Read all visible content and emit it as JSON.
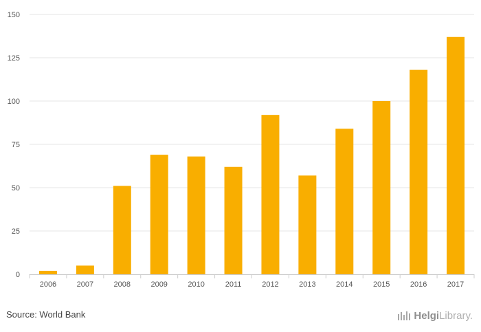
{
  "chart_data": {
    "type": "bar",
    "categories": [
      "2006",
      "2007",
      "2008",
      "2009",
      "2010",
      "2011",
      "2012",
      "2013",
      "2014",
      "2015",
      "2016",
      "2017"
    ],
    "values": [
      2,
      5,
      51,
      69,
      68,
      62,
      92,
      57,
      84,
      100,
      118,
      137
    ],
    "title": "",
    "xlabel": "",
    "ylabel": "",
    "ylim": [
      0,
      150
    ],
    "yticks": [
      0,
      25,
      50,
      75,
      100,
      125,
      150
    ],
    "grid": true,
    "bar_color": "#F9AE00",
    "grid_color": "#E6E6E6"
  },
  "footer": {
    "source": "Source: World Bank",
    "brand_part1": "Helgi",
    "brand_part2": "Library."
  },
  "brand_icon": "helgi-library-logo-icon"
}
